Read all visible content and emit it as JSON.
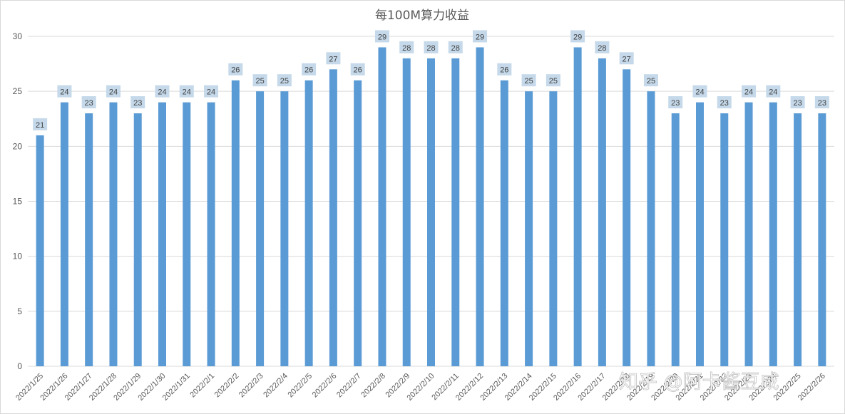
{
  "chart_data": {
    "type": "bar",
    "title": "每100M算力收益",
    "xlabel": "",
    "ylabel": "",
    "ylim": [
      0,
      30
    ],
    "yticks": [
      0,
      5,
      10,
      15,
      20,
      25,
      30
    ],
    "grid": true,
    "legend": "none",
    "categories": [
      "2022/1/25",
      "2022/1/26",
      "2022/1/27",
      "2022/1/28",
      "2022/1/29",
      "2022/1/30",
      "2022/1/31",
      "2022/2/1",
      "2022/2/2",
      "2022/2/3",
      "2022/2/4",
      "2022/2/5",
      "2022/2/6",
      "2022/2/7",
      "2022/2/8",
      "2022/2/9",
      "2022/2/10",
      "2022/2/11",
      "2022/2/12",
      "2022/2/13",
      "2022/2/14",
      "2022/2/15",
      "2022/2/16",
      "2022/2/17",
      "2022/2/18",
      "2022/2/19",
      "2022/2/20",
      "2022/2/21",
      "2022/2/22",
      "2022/2/23",
      "2022/2/24",
      "2022/2/25",
      "2022/2/26"
    ],
    "values": [
      21,
      24,
      23,
      24,
      23,
      24,
      24,
      24,
      26,
      25,
      25,
      26,
      27,
      26,
      29,
      28,
      28,
      28,
      29,
      26,
      25,
      25,
      29,
      28,
      27,
      25,
      23,
      24,
      23,
      24,
      24,
      23,
      23
    ],
    "colors": {
      "bar": "#5b9bd5",
      "label_bg": "#c5d9ea",
      "grid": "#d9d9d9",
      "text": "#595959"
    }
  },
  "watermark": "知乎 @阿卡酱豆咸"
}
